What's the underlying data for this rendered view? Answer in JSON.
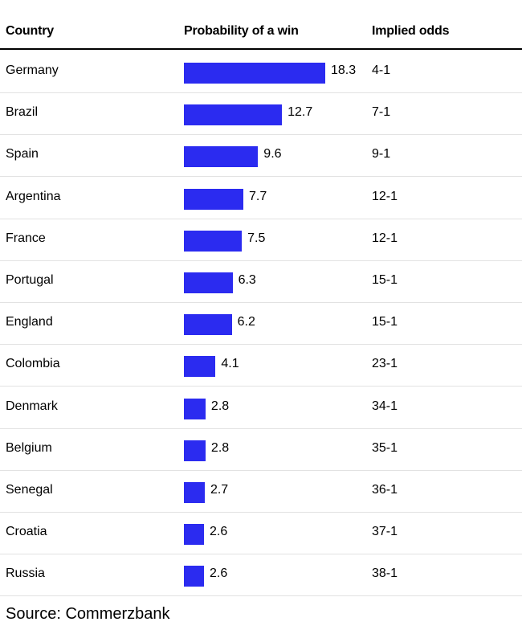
{
  "headers": {
    "country": "Country",
    "probability": "Probability of a win",
    "odds": "Implied odds"
  },
  "chart_data": {
    "type": "bar",
    "orientation": "horizontal",
    "categories": [
      "Germany",
      "Brazil",
      "Spain",
      "Argentina",
      "France",
      "Portugal",
      "England",
      "Colombia",
      "Denmark",
      "Belgium",
      "Senegal",
      "Croatia",
      "Russia"
    ],
    "values": [
      18.3,
      12.7,
      9.6,
      7.7,
      7.5,
      6.3,
      6.2,
      4.1,
      2.8,
      2.8,
      2.7,
      2.6,
      2.6
    ],
    "value_labels": [
      "18.3",
      "12.7",
      "9.6",
      "7.7",
      "7.5",
      "6.3",
      "6.2",
      "4.1",
      "2.8",
      "2.8",
      "2.7",
      "2.6",
      "2.6"
    ],
    "implied_odds": [
      "4-1",
      "7-1",
      "9-1",
      "12-1",
      "12-1",
      "15-1",
      "15-1",
      "23-1",
      "34-1",
      "35-1",
      "36-1",
      "37-1",
      "38-1"
    ],
    "bar_color": "#2b2bf0",
    "grid": false
  },
  "source": "Source: Commerzbank"
}
